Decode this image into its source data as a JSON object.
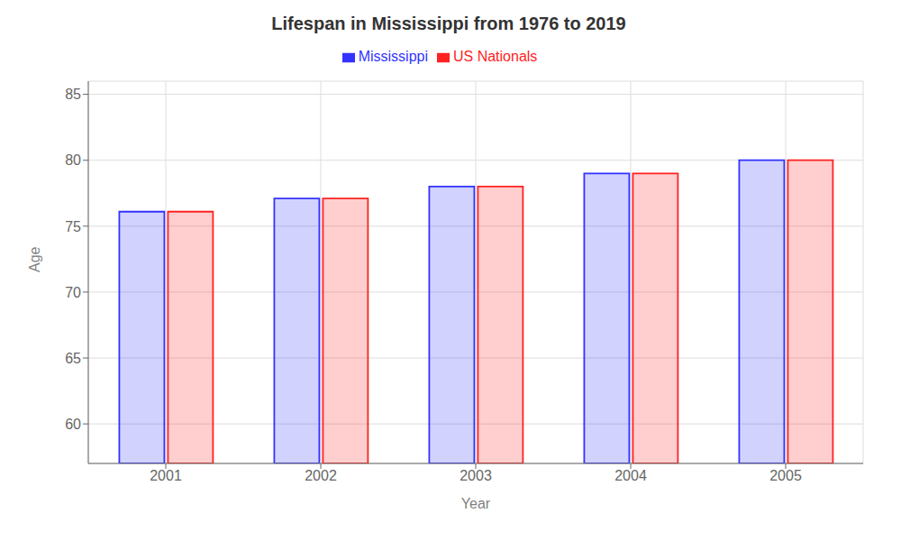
{
  "chart_data": {
    "type": "bar",
    "title": "Lifespan in Mississippi from 1976 to 2019",
    "xlabel": "Year",
    "ylabel": "Age",
    "categories": [
      "2001",
      "2002",
      "2003",
      "2004",
      "2005"
    ],
    "series": [
      {
        "name": "Mississippi",
        "color": "#3333ff",
        "values": [
          76.1,
          77.1,
          78.0,
          79.0,
          80.0
        ]
      },
      {
        "name": "US Nationals",
        "color": "#ff2222",
        "values": [
          76.1,
          77.1,
          78.0,
          79.0,
          80.0
        ]
      }
    ],
    "ylim": [
      57,
      86
    ],
    "yticks": [
      60,
      65,
      70,
      75,
      80,
      85
    ],
    "grid": true,
    "legend": "top"
  }
}
